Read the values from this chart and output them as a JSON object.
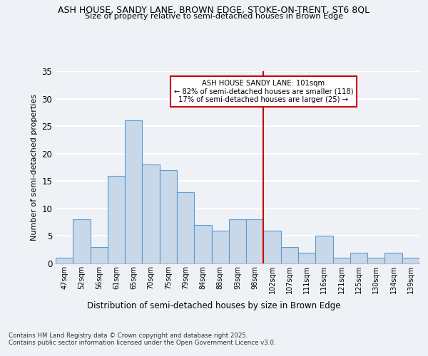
{
  "title": "ASH HOUSE, SANDY LANE, BROWN EDGE, STOKE-ON-TRENT, ST6 8QL",
  "subtitle": "Size of property relative to semi-detached houses in Brown Edge",
  "xlabel": "Distribution of semi-detached houses by size in Brown Edge",
  "ylabel": "Number of semi-detached properties",
  "annotation_title": "ASH HOUSE SANDY LANE: 101sqm",
  "annotation_line1": "← 82% of semi-detached houses are smaller (118)",
  "annotation_line2": "17% of semi-detached houses are larger (25) →",
  "categories": [
    "47sqm",
    "52sqm",
    "56sqm",
    "61sqm",
    "65sqm",
    "70sqm",
    "75sqm",
    "79sqm",
    "84sqm",
    "88sqm",
    "93sqm",
    "98sqm",
    "102sqm",
    "107sqm",
    "111sqm",
    "116sqm",
    "121sqm",
    "125sqm",
    "130sqm",
    "134sqm",
    "139sqm"
  ],
  "values": [
    1,
    8,
    3,
    16,
    26,
    18,
    17,
    13,
    7,
    6,
    8,
    8,
    6,
    3,
    2,
    5,
    1,
    2,
    1,
    2,
    1
  ],
  "bar_color": "#c8d8e8",
  "bar_edge_color": "#5b9bd5",
  "vline_color": "#cc0000",
  "background_color": "#eef2f7",
  "grid_color": "#ffffff",
  "ylim": [
    0,
    35
  ],
  "yticks": [
    0,
    5,
    10,
    15,
    20,
    25,
    30,
    35
  ],
  "footnote1": "Contains HM Land Registry data © Crown copyright and database right 2025.",
  "footnote2": "Contains public sector information licensed under the Open Government Licence v3.0."
}
